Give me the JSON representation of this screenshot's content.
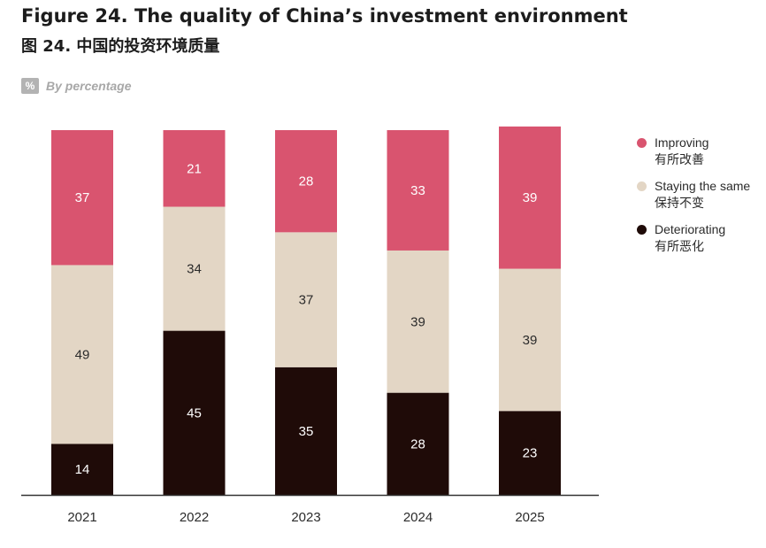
{
  "header": {
    "title_en": "Figure 24. The quality of China’s investment environment",
    "title_zh": "图 24. 中国的投资环境质量",
    "unit_badge": "%",
    "unit_label": "By percentage"
  },
  "legend": {
    "items": [
      {
        "en": "Improving",
        "zh": "有所改善",
        "color": "#d9546f"
      },
      {
        "en": "Staying the same",
        "zh": "保持不变",
        "color": "#e3d6c5"
      },
      {
        "en": "Deteriorating",
        "zh": "有所恶化",
        "color": "#1f0b08"
      }
    ]
  },
  "chart_data": {
    "type": "bar",
    "stacked": true,
    "categories": [
      "2021",
      "2022",
      "2023",
      "2024",
      "2025"
    ],
    "series": [
      {
        "name": "Deteriorating",
        "color": "#1f0b08",
        "label_color": "#ffffff",
        "values": [
          14,
          45,
          35,
          28,
          23
        ]
      },
      {
        "name": "Staying the same",
        "color": "#e3d6c5",
        "label_color": "#2b2b2b",
        "values": [
          49,
          34,
          37,
          39,
          39
        ]
      },
      {
        "name": "Improving",
        "color": "#d9546f",
        "label_color": "#ffffff",
        "values": [
          37,
          21,
          28,
          33,
          39
        ]
      }
    ],
    "ylim": [
      0,
      100
    ],
    "grid": false,
    "legend_position": "right"
  }
}
